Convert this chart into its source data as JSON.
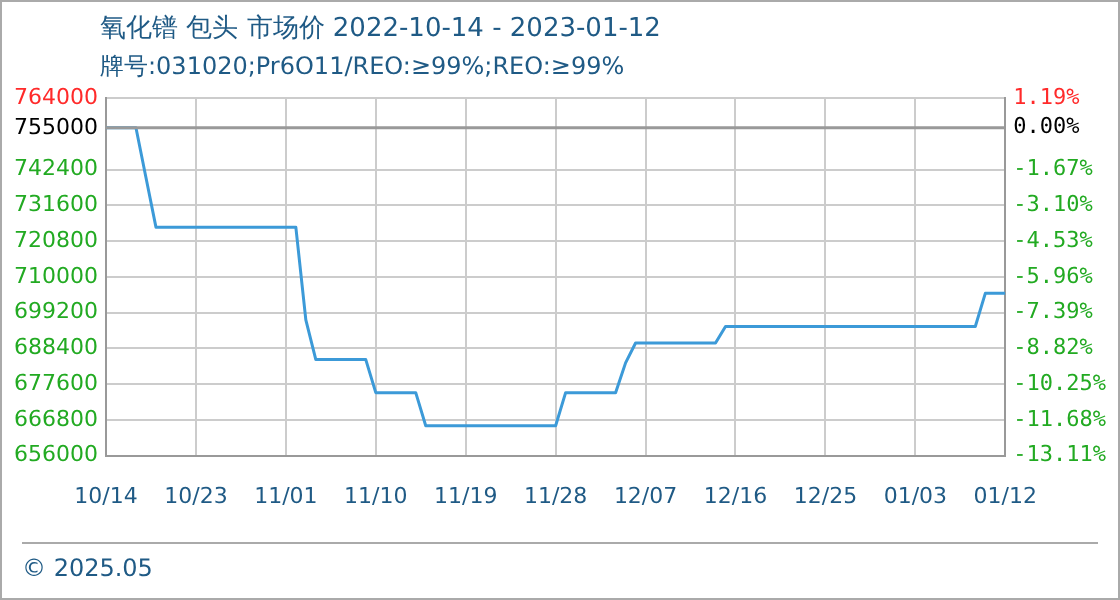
{
  "chart_data": {
    "type": "line",
    "title": "氧化镨 包头 市场价 2022-10-14 - 2023-01-12",
    "subtitle": "牌号:031020;Pr6O11/REO:≥99%;REO:≥99%",
    "x": [
      "2022-10-14",
      "2022-10-17",
      "2022-10-18",
      "2022-10-19",
      "2022-11-02",
      "2022-11-03",
      "2022-11-04",
      "2022-11-09",
      "2022-11-10",
      "2022-11-14",
      "2022-11-15",
      "2022-11-28",
      "2022-11-29",
      "2022-12-04",
      "2022-12-05",
      "2022-12-06",
      "2022-12-14",
      "2022-12-15",
      "2023-01-09",
      "2023-01-10",
      "2023-01-12"
    ],
    "series": [
      {
        "color": "#3c9ad8",
        "values": [
          755000,
          755000,
          740000,
          725000,
          725000,
          697000,
          685000,
          685000,
          675000,
          675000,
          665000,
          665000,
          675000,
          675000,
          684000,
          690000,
          690000,
          695000,
          695000,
          705000,
          705000
        ]
      }
    ],
    "xlim": [
      "2022-10-14",
      "2023-01-12"
    ],
    "xticks": [
      {
        "value": "2022-10-14",
        "label": "10/14"
      },
      {
        "value": "2022-10-23",
        "label": "10/23"
      },
      {
        "value": "2022-11-01",
        "label": "11/01"
      },
      {
        "value": "2022-11-10",
        "label": "11/10"
      },
      {
        "value": "2022-11-19",
        "label": "11/19"
      },
      {
        "value": "2022-11-28",
        "label": "11/28"
      },
      {
        "value": "2022-12-07",
        "label": "12/07"
      },
      {
        "value": "2022-12-16",
        "label": "12/16"
      },
      {
        "value": "2022-12-25",
        "label": "12/25"
      },
      {
        "value": "2023-01-03",
        "label": "01/03"
      },
      {
        "value": "2023-01-12",
        "label": "01/12"
      }
    ],
    "ylim": [
      656000,
      764000
    ],
    "yticks": [
      656000,
      666800,
      677600,
      688400,
      699200,
      710000,
      720800,
      731600,
      742400,
      755000,
      764000
    ],
    "y2lim": [
      -13.11,
      1.19
    ],
    "y2ticks": [
      {
        "value": -13.11,
        "label": "-13.11%"
      },
      {
        "value": -11.68,
        "label": "-11.68%"
      },
      {
        "value": -10.25,
        "label": "-10.25%"
      },
      {
        "value": -8.82,
        "label": "-8.82%"
      },
      {
        "value": -7.39,
        "label": "-7.39%"
      },
      {
        "value": -5.96,
        "label": "-5.96%"
      },
      {
        "value": -4.53,
        "label": "-4.53%"
      },
      {
        "value": -3.1,
        "label": "-3.10%"
      },
      {
        "value": -1.67,
        "label": "-1.67%"
      },
      {
        "value": 0,
        "label": "0.00%"
      },
      {
        "value": 1.19,
        "label": "1.19%"
      }
    ],
    "ref_lines": [
      {
        "axis": "y",
        "value": 755000,
        "color": "#999999"
      }
    ],
    "grid": true,
    "legend": false,
    "marker": "none",
    "line_style": "solid",
    "annotations": [
      "© 2025.05"
    ]
  }
}
